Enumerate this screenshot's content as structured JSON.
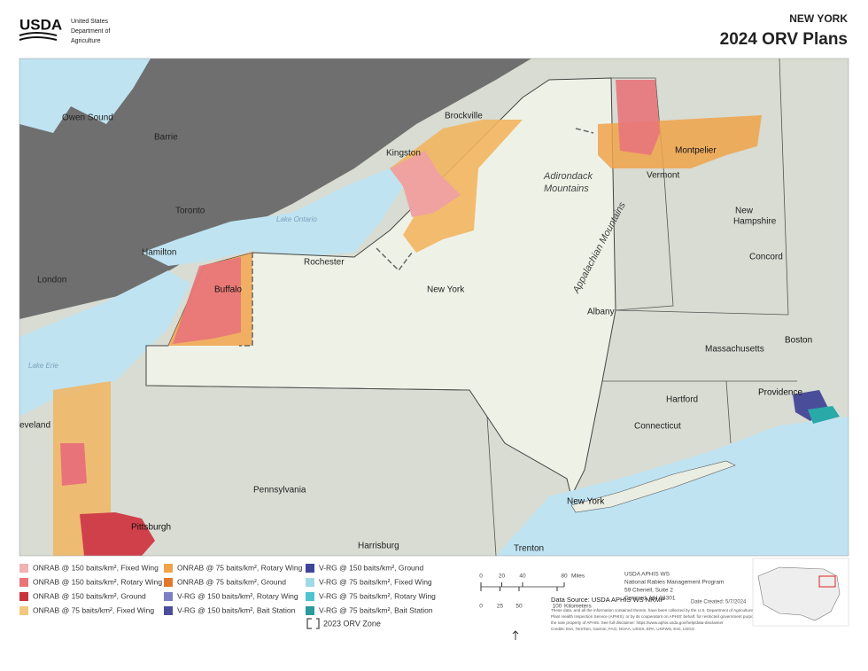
{
  "header": {
    "agency": "USDA",
    "agency_lines": [
      "United States",
      "Department of",
      "Agriculture"
    ],
    "state": "NEW YORK",
    "title": "2024 ORV Plans"
  },
  "map": {
    "labels": [
      "Owen Sound",
      "Barrie",
      "Toronto",
      "Lake Ontario",
      "Hamilton",
      "London",
      "Lake Erie",
      "eveland",
      "Brockville",
      "Kingston",
      "Adirondack",
      "Mountains",
      "Rochester",
      "Buffalo",
      "New York",
      "Albany",
      "Appalachian Mountains",
      "Vermont",
      "Montpelier",
      "New",
      "Hampshire",
      "Concord",
      "Boston",
      "Massachusetts",
      "Providence",
      "Hartford",
      "Connecticut",
      "Pennsylvania",
      "Pittsburgh",
      "Harrisburg",
      "Trenton",
      "New York"
    ]
  },
  "legend": {
    "items": [
      "ONRAB @ 150 baits/km², Fixed Wing",
      "ONRAB @ 150 baits/km², Rotary Wing",
      "ONRAB @ 150 baits/km², Ground",
      "ONRAB @ 75 baits/km², Fixed Wing",
      "ONRAB @ 75 baits/km², Rotary Wing",
      "ONRAB @ 75 baits/km², Ground",
      "V-RG @ 150 baits/km², Rotary Wing",
      "V-RG @ 150 baits/km², Bait Station",
      "V-RG @ 150 baits/km², Ground",
      "V-RG @ 75 baits/km², Fixed Wing",
      "V-RG @ 75 baits/km², Rotary Wing",
      "V-RG @ 75 baits/km², Bait Station"
    ],
    "previous_zone": "2023 ORV Zone"
  },
  "scale": {
    "miles": [
      0,
      20,
      40,
      80
    ],
    "miles_unit": "Miles",
    "kilometers": [
      0,
      25,
      50,
      100
    ],
    "kilometers_unit": "Kilometers"
  },
  "footer": {
    "data_source": "Data Source: USDA APHIS WS NRMP",
    "office": [
      "USDA APHIS WS",
      "National Rabies Management Program",
      "59 Chenell, Suite 2",
      "Concord, NH 03301"
    ],
    "date_created": "Date Created: 5/7/2024",
    "disclaimer": [
      "These data, and all the information contained therein, have been collected by the U.S. Department of Agriculture's Animal and",
      "Plant Health Inspection Service (APHIS), or by its cooperators on APHIS' behalf, for restricted government purposes only and is",
      "the sole property of APHIS. See full disclaimer: https://www.aphis.usda.gov/help/data-disclaimer"
    ],
    "credits": "Credits: Esri, TomTom, Garmin, FAO, NOAA, USGS, EPA, USFWS, Esri, USGS"
  }
}
